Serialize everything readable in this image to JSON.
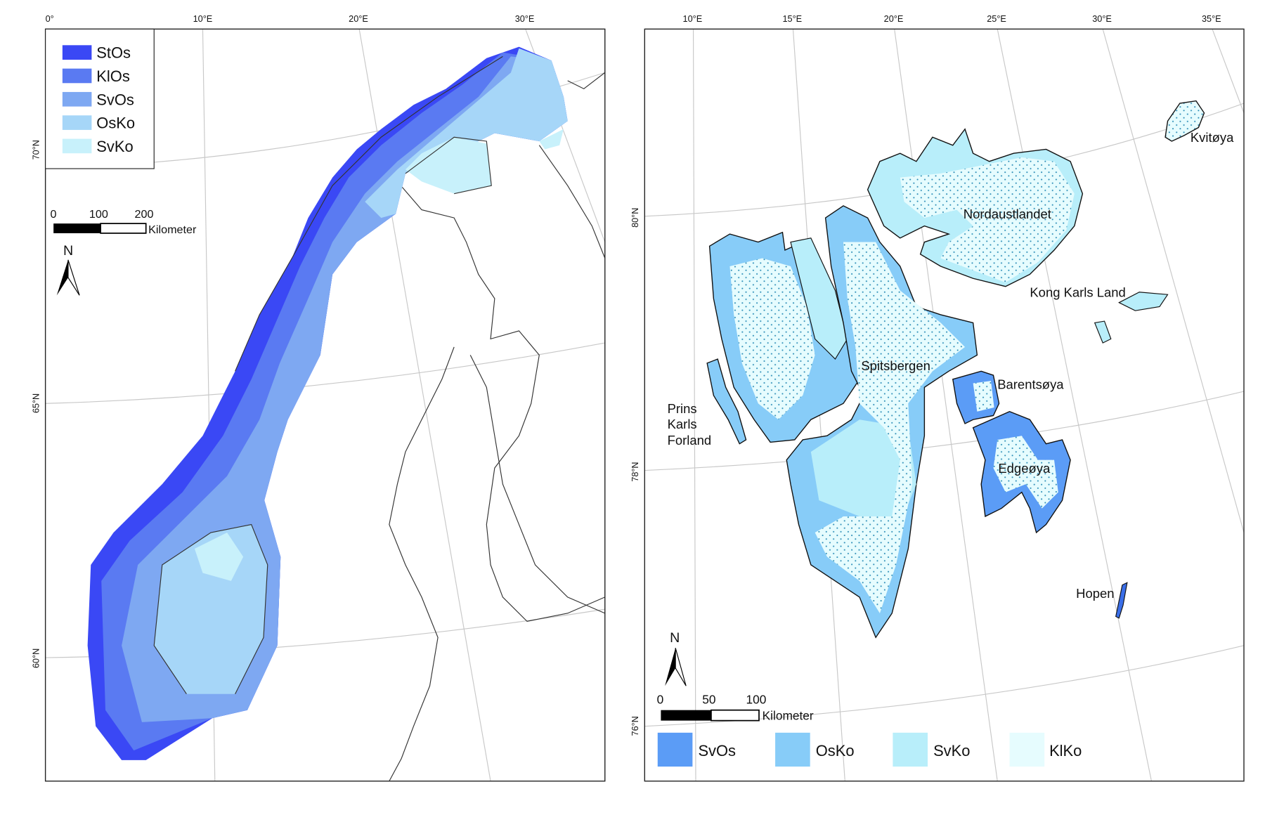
{
  "colors": {
    "StOs": "#3a48f5",
    "KlOs": "#5a7af2",
    "SvOs_left": "#7ea8f2",
    "OsKo_left": "#a6d6f8",
    "SvKo_left": "#c8f1fb",
    "SvOs_right": "#5b9cf6",
    "OsKo_right": "#87ccf8",
    "SvKo_right": "#b8eefa",
    "KlKo": "#e6fcfe",
    "dots": "#2e8fb8"
  },
  "left_map": {
    "lon_ticks": [
      "0°",
      "10°E",
      "20°E",
      "30°E"
    ],
    "lat_ticks": [
      "70°N",
      "65°N",
      "60°N"
    ],
    "legend": [
      {
        "label": "StOs",
        "color": "#3a48f5"
      },
      {
        "label": "KlOs",
        "color": "#5a7af2"
      },
      {
        "label": "SvOs",
        "color": "#7ea8f2"
      },
      {
        "label": "OsKo",
        "color": "#a6d6f8"
      },
      {
        "label": "SvKo",
        "color": "#c8f1fb"
      }
    ],
    "scale_bar": {
      "ticks": [
        "0",
        "100",
        "200"
      ],
      "unit": "Kilometer"
    },
    "north_arrow": "N"
  },
  "right_map": {
    "lon_ticks": [
      "10°E",
      "15°E",
      "20°E",
      "25°E",
      "30°E",
      "35°E"
    ],
    "lat_ticks": [
      "80°N",
      "78°N",
      "76°N"
    ],
    "places": [
      "Kvitøya",
      "Nordaustlandet",
      "Kong Karls Land",
      "Spitsbergen",
      "Barentsøya",
      "Prins",
      "Karls",
      "Forland",
      "Edgeøya",
      "Hopen"
    ],
    "legend": [
      {
        "label": "SvOs",
        "color": "#5b9cf6"
      },
      {
        "label": "OsKo",
        "color": "#87ccf8"
      },
      {
        "label": "SvKo",
        "color": "#b8eefa"
      },
      {
        "label": "KlKo",
        "color": "#e6fcfe"
      }
    ],
    "scale_bar": {
      "ticks": [
        "0",
        "50",
        "100"
      ],
      "unit": "Kilometer"
    },
    "north_arrow": "N"
  }
}
